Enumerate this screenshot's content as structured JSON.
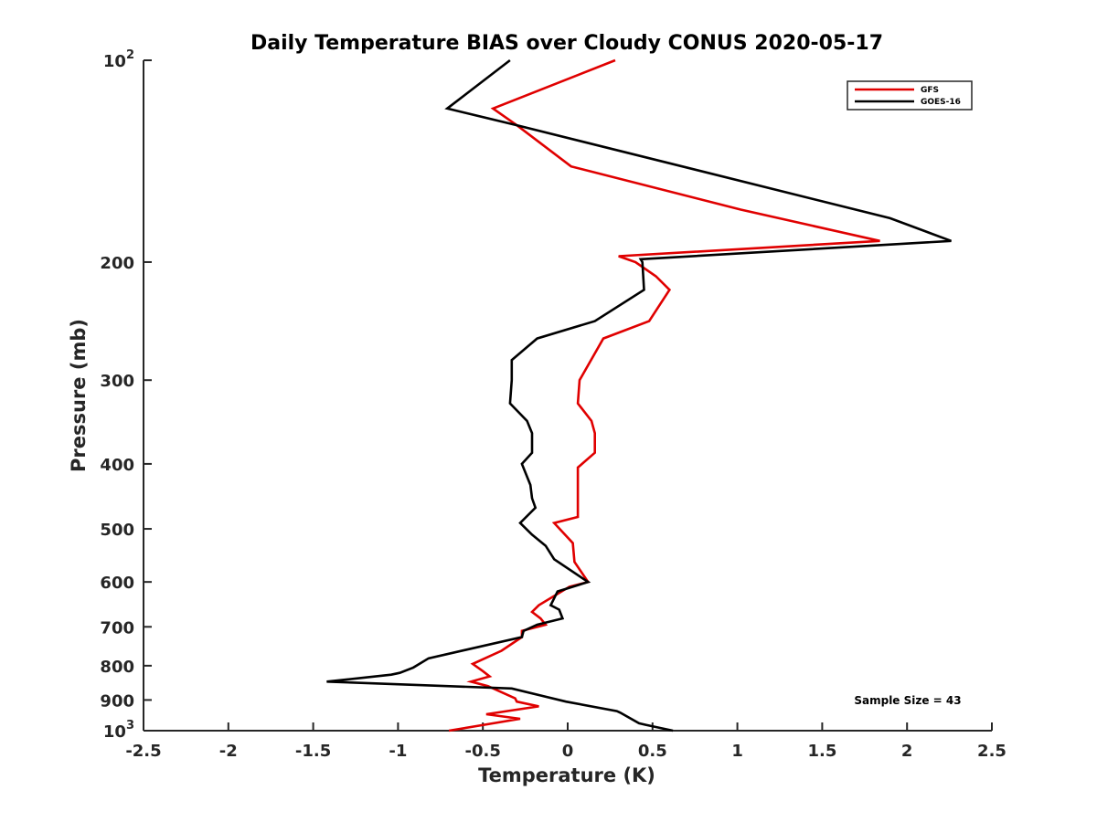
{
  "chart_data": {
    "type": "line",
    "title": "Daily Temperature BIAS over Cloudy CONUS 2020-05-17",
    "xlabel": "Temperature (K)",
    "ylabel": "Pressure (mb)",
    "xlim": [
      -2.5,
      2.5
    ],
    "ylim": [
      100,
      1000
    ],
    "y_scale": "log",
    "y_reversed": true,
    "grid": false,
    "legend_position": "top-right",
    "x_ticks": [
      -2.5,
      -2,
      -1.5,
      -1,
      -0.5,
      0,
      0.5,
      1,
      1.5,
      2,
      2.5
    ],
    "x_tick_labels": [
      "-2.5",
      "-2",
      "-1.5",
      "-1",
      "-0.5",
      "0",
      "0.5",
      "1",
      "1.5",
      "2",
      "2.5"
    ],
    "y_ticks": [
      100,
      200,
      300,
      400,
      500,
      600,
      700,
      800,
      900,
      1000
    ],
    "y_tick_labels": [
      {
        "base": "10",
        "exp": "2"
      },
      {
        "base": "200",
        "exp": ""
      },
      {
        "base": "300",
        "exp": ""
      },
      {
        "base": "400",
        "exp": ""
      },
      {
        "base": "500",
        "exp": ""
      },
      {
        "base": "600",
        "exp": ""
      },
      {
        "base": "700",
        "exp": ""
      },
      {
        "base": "800",
        "exp": ""
      },
      {
        "base": "900",
        "exp": ""
      },
      {
        "base": "10",
        "exp": "3"
      }
    ],
    "annotation": "Sample Size = 43",
    "series": [
      {
        "name": "GFS",
        "color": "#e00000",
        "points": [
          [
            0.28,
            100
          ],
          [
            -0.44,
            118
          ],
          [
            -0.3,
            125
          ],
          [
            0.02,
            144
          ],
          [
            1.02,
            167
          ],
          [
            1.84,
            186
          ],
          [
            0.3,
            196
          ],
          [
            0.4,
            200
          ],
          [
            0.52,
            210
          ],
          [
            0.6,
            220
          ],
          [
            0.48,
            245
          ],
          [
            0.21,
            260
          ],
          [
            0.07,
            300
          ],
          [
            0.07,
            300
          ],
          [
            0.06,
            325
          ],
          [
            0.14,
            345
          ],
          [
            0.16,
            360
          ],
          [
            0.16,
            385
          ],
          [
            0.06,
            405
          ],
          [
            0.06,
            450
          ],
          [
            0.06,
            480
          ],
          [
            -0.08,
            490
          ],
          [
            0.03,
            525
          ],
          [
            0.04,
            560
          ],
          [
            0.12,
            600
          ],
          [
            0.01,
            610
          ],
          [
            -0.17,
            650
          ],
          [
            -0.21,
            665
          ],
          [
            -0.16,
            680
          ],
          [
            -0.13,
            695
          ],
          [
            -0.27,
            710
          ],
          [
            -0.27,
            725
          ],
          [
            -0.39,
            760
          ],
          [
            -0.56,
            795
          ],
          [
            -0.5,
            815
          ],
          [
            -0.46,
            830
          ],
          [
            -0.57,
            845
          ],
          [
            -0.47,
            858
          ],
          [
            -0.31,
            895
          ],
          [
            -0.3,
            905
          ],
          [
            -0.17,
            920
          ],
          [
            -0.48,
            945
          ],
          [
            -0.28,
            960
          ],
          [
            -0.7,
            1000
          ]
        ]
      },
      {
        "name": "GOES-16",
        "color": "#000000",
        "points": [
          [
            -0.34,
            100
          ],
          [
            -0.71,
            118
          ],
          [
            -0.3,
            125
          ],
          [
            1.9,
            172
          ],
          [
            2.26,
            186
          ],
          [
            0.43,
            198
          ],
          [
            0.44,
            200
          ],
          [
            0.45,
            220
          ],
          [
            0.16,
            245
          ],
          [
            -0.18,
            260
          ],
          [
            -0.33,
            280
          ],
          [
            -0.33,
            300
          ],
          [
            -0.34,
            325
          ],
          [
            -0.24,
            345
          ],
          [
            -0.21,
            360
          ],
          [
            -0.21,
            385
          ],
          [
            -0.27,
            400
          ],
          [
            -0.22,
            430
          ],
          [
            -0.21,
            450
          ],
          [
            -0.19,
            465
          ],
          [
            -0.28,
            490
          ],
          [
            -0.21,
            510
          ],
          [
            -0.13,
            530
          ],
          [
            -0.08,
            555
          ],
          [
            0.12,
            600
          ],
          [
            -0.06,
            620
          ],
          [
            -0.1,
            650
          ],
          [
            -0.05,
            660
          ],
          [
            -0.03,
            680
          ],
          [
            -0.18,
            695
          ],
          [
            -0.26,
            710
          ],
          [
            -0.27,
            725
          ],
          [
            -0.82,
            780
          ],
          [
            -0.91,
            805
          ],
          [
            -0.99,
            820
          ],
          [
            -1.04,
            825
          ],
          [
            -1.42,
            845
          ],
          [
            -0.33,
            865
          ],
          [
            -0.01,
            905
          ],
          [
            0.29,
            935
          ],
          [
            0.31,
            940
          ],
          [
            0.42,
            975
          ],
          [
            0.46,
            980
          ],
          [
            0.62,
            1000
          ]
        ]
      }
    ]
  }
}
